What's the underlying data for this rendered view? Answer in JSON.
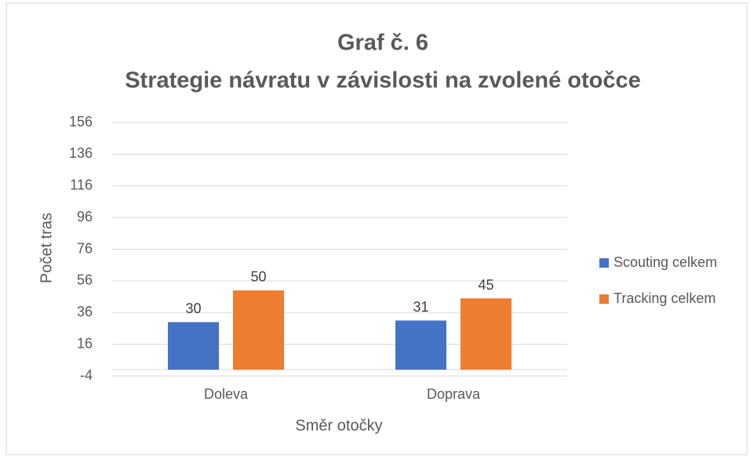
{
  "chart_data": {
    "type": "bar",
    "title": [
      "Graf č. 6",
      "Strategie návratu v závislosti na zvolené otočce"
    ],
    "x_label": "Směr otočky",
    "y_label": "Počet tras",
    "categories": [
      "Doleva",
      "Doprava"
    ],
    "series": [
      {
        "name": "Scouting celkem",
        "color": "#4472c4",
        "values": [
          30,
          31
        ]
      },
      {
        "name": "Tracking celkem",
        "color": "#ed7d31",
        "values": [
          50,
          45
        ]
      }
    ],
    "ylim": [
      -4,
      156
    ],
    "yticks": [
      -4,
      16,
      36,
      56,
      76,
      96,
      116,
      136,
      156
    ],
    "grid": true,
    "legend": "right",
    "data_labels": true
  }
}
